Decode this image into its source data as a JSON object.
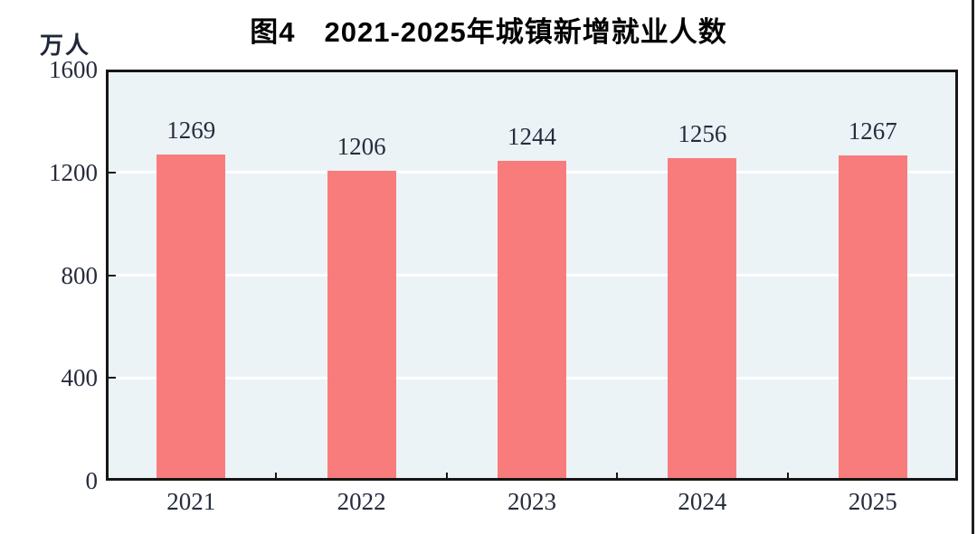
{
  "chart_data": {
    "type": "bar",
    "title": "图4　2021-2025年城镇新增就业人数",
    "unit_label": "万人",
    "categories": [
      "2021",
      "2022",
      "2023",
      "2024",
      "2025"
    ],
    "values": [
      1269,
      1206,
      1244,
      1256,
      1267
    ],
    "ylim": [
      0,
      1600
    ],
    "yticks": [
      0,
      400,
      800,
      1200,
      1600
    ],
    "xlabel": "",
    "ylabel": "万人",
    "grid": "horizontal gridlines at 400, 800, 1200 (white) on light blue panel",
    "legend_position": "none"
  },
  "colors": {
    "bar": "#F97C7C",
    "plot_background": "#ECF3F7",
    "gridline": "#FFFFFF",
    "frame": "#161616",
    "axis_text": "#262C3D",
    "title_text": "#000000",
    "page_edge_line": "#1F1F1F"
  }
}
